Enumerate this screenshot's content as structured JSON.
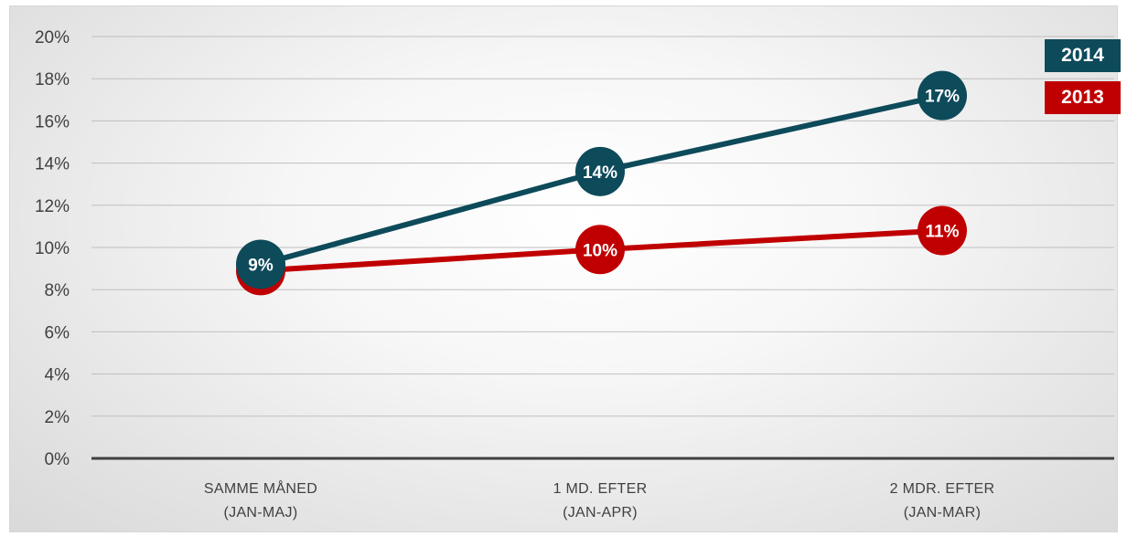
{
  "chart_data": {
    "type": "line",
    "title": "",
    "xlabel": "",
    "ylabel": "",
    "categories": [
      [
        "SAMME MÅNED",
        "(JAN-MAJ)"
      ],
      [
        "1 MD. EFTER",
        "(JAN-APR)"
      ],
      [
        "2 MDR. EFTER",
        "(JAN-MAR)"
      ]
    ],
    "y_ticks": [
      "0%",
      "2%",
      "4%",
      "6%",
      "8%",
      "10%",
      "12%",
      "14%",
      "16%",
      "18%",
      "20%"
    ],
    "ylim": [
      0,
      20
    ],
    "grid": true,
    "legend_position": "top-right",
    "series": [
      {
        "name": "2013",
        "color": "#c00000",
        "values": [
          8.9,
          9.9,
          10.8
        ],
        "labels": [
          "",
          "10%",
          "11%"
        ]
      },
      {
        "name": "2014",
        "color": "#0d4a5a",
        "values": [
          9.2,
          13.6,
          17.2
        ],
        "labels": [
          "9%",
          "14%",
          "17%"
        ]
      }
    ]
  }
}
